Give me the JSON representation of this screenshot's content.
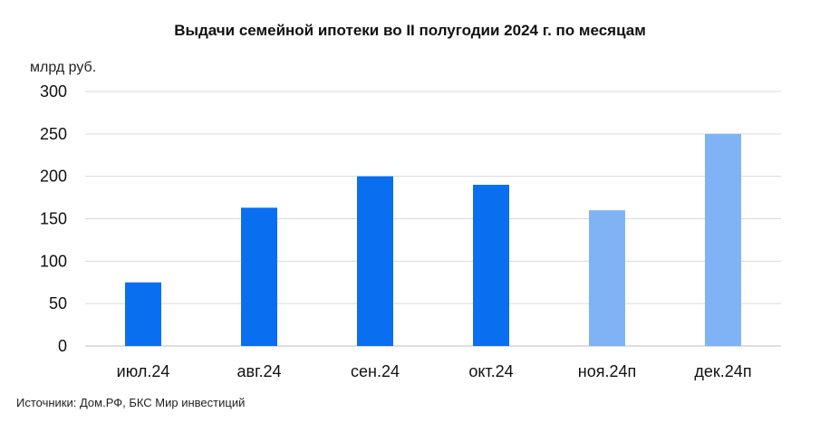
{
  "chart_data": {
    "type": "bar",
    "title": "Выдачи семейной ипотеки во II полугодии 2024 г. по месяцам",
    "ylabel": "млрд руб.",
    "xlabel": "",
    "categories": [
      "июл.24",
      "авг.24",
      "сен.24",
      "окт.24",
      "ноя.24п",
      "дек.24п"
    ],
    "values": [
      75,
      163,
      200,
      190,
      160,
      250
    ],
    "bar_colors": [
      "#0a6ef0",
      "#0a6ef0",
      "#0a6ef0",
      "#0a6ef0",
      "#7fb3f6",
      "#7fb3f6"
    ],
    "yticks": [
      0,
      50,
      100,
      150,
      200,
      250,
      300
    ],
    "ylim": [
      0,
      300
    ],
    "grid": true,
    "legend": "none"
  },
  "source": "Источники: Дом.РФ, БКС Мир инвестиций"
}
